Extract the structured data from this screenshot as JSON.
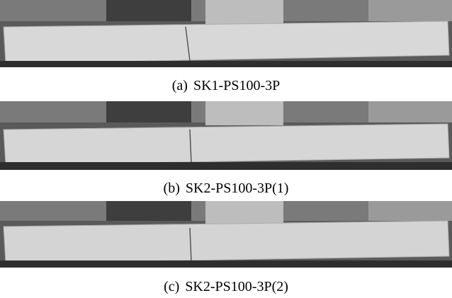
{
  "figure": {
    "panels": [
      {
        "label": "(a)",
        "caption": "SK1-PS100-3P"
      },
      {
        "label": "(b)",
        "caption": "SK2-PS100-3P(1)"
      },
      {
        "label": "(c)",
        "caption": "SK2-PS100-3P(2)"
      }
    ]
  }
}
